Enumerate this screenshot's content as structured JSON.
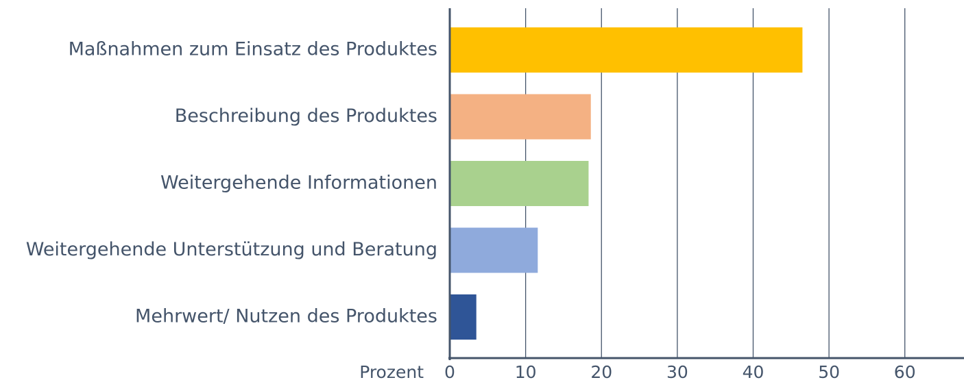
{
  "chart_data": {
    "type": "bar",
    "orientation": "horizontal",
    "categories": [
      "Maßnahmen zum Einsatz des Produktes",
      "Beschreibung des Produktes",
      "Weitergehende Informationen",
      "Weitergehende Unterstützung und Beratung",
      "Mehrwert/ Nutzen des Produktes"
    ],
    "values": [
      46.5,
      18.6,
      18.3,
      11.6,
      3.5
    ],
    "colors": [
      "#ffc000",
      "#f4b183",
      "#a9d18e",
      "#8faadc",
      "#2f5597"
    ],
    "x_label": "Prozent",
    "xlim": [
      0,
      67.8
    ],
    "xticks": [
      0,
      10,
      20,
      30,
      40,
      50,
      60
    ],
    "grid": true
  }
}
